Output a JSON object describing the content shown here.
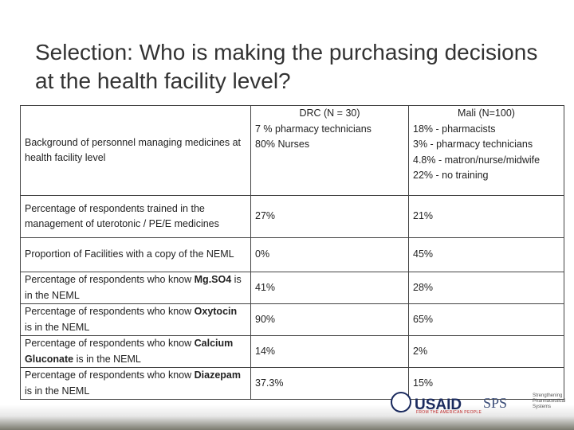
{
  "title": "Selection: Who is making the purchasing decisions at the health facility level?",
  "table": {
    "columns": [
      "DRC (N = 30)",
      "Mali (N=100)"
    ],
    "rows": [
      {
        "label": "Background of personnel managing medicines at health facility level",
        "values": [
          [
            "7 % pharmacy technicians",
            "80% Nurses"
          ],
          [
            "18% - pharmacists",
            "3% - pharmacy technicians",
            "4.8% - matron/nurse/midwife",
            "22% - no training"
          ]
        ]
      },
      {
        "label": "Percentage of respondents trained in the management of uterotonic / PE/E medicines",
        "values": [
          "27%",
          "21%"
        ]
      },
      {
        "label": "Proportion of Facilities with a copy of the NEML",
        "values": [
          "0%",
          "45%"
        ]
      },
      {
        "label": {
          "pre": "Percentage of respondents who know ",
          "em": "Mg.SO4",
          "post": " is in the NEML"
        },
        "values": [
          "41%",
          "28%"
        ]
      },
      {
        "label": {
          "pre": "Percentage of respondents who know ",
          "em": "Oxytocin",
          "post": " is in the NEML"
        },
        "values": [
          "90%",
          "65%"
        ]
      },
      {
        "label": {
          "pre": "Percentage of respondents who know ",
          "em": "Calcium Gluconate",
          "post": " is in the NEML"
        },
        "values": [
          "14%",
          "2%"
        ]
      },
      {
        "label": {
          "pre": "Percentage of respondents who know ",
          "em": "Diazepam",
          "post": " is in the NEML"
        },
        "values": [
          "37.3%",
          "15%"
        ]
      }
    ]
  },
  "footer": {
    "usaid": "USAID",
    "usaid_tagline": "FROM THE AMERICAN PEOPLE",
    "sps": "SPS",
    "sps_name": "Strengthening Pharmaceutical Systems"
  }
}
